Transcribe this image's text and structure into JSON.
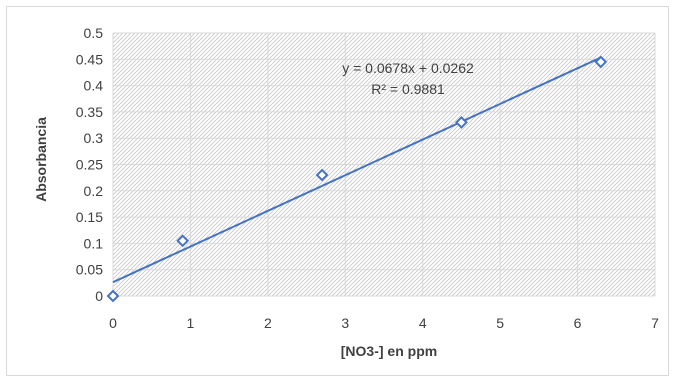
{
  "chart_data": {
    "type": "scatter",
    "title": "",
    "xlabel": "[NO3-] en ppm",
    "ylabel": "Absorbancia",
    "xlim": [
      0,
      7
    ],
    "ylim": [
      0,
      0.5
    ],
    "x_ticks": [
      0,
      1,
      2,
      3,
      4,
      5,
      6,
      7
    ],
    "y_ticks": [
      0,
      0.05,
      0.1,
      0.15,
      0.2,
      0.25,
      0.3,
      0.35,
      0.4,
      0.45,
      0.5
    ],
    "x_tick_labels": [
      "0",
      "1",
      "2",
      "3",
      "4",
      "5",
      "6",
      "7"
    ],
    "y_tick_labels": [
      "0",
      "0.05",
      "0.1",
      "0.15",
      "0.2",
      "0.25",
      "0.3",
      "0.35",
      "0.4",
      "0.45",
      "0.5"
    ],
    "grid": true,
    "plot_background": "hatched",
    "series": [
      {
        "x": [
          0,
          0.9,
          2.7,
          4.5,
          6.3
        ],
        "y": [
          0,
          0.105,
          0.23,
          0.33,
          0.445
        ],
        "marker": "diamond-open",
        "color": "#4472c4"
      }
    ],
    "trendline": {
      "type": "linear",
      "slope": 0.0678,
      "intercept": 0.0262,
      "x_range": [
        0,
        6.3
      ],
      "equation": "y = 0.0678x + 0.0262",
      "r_squared_label": "R² = 0.9881",
      "color": "#4472c4"
    }
  }
}
